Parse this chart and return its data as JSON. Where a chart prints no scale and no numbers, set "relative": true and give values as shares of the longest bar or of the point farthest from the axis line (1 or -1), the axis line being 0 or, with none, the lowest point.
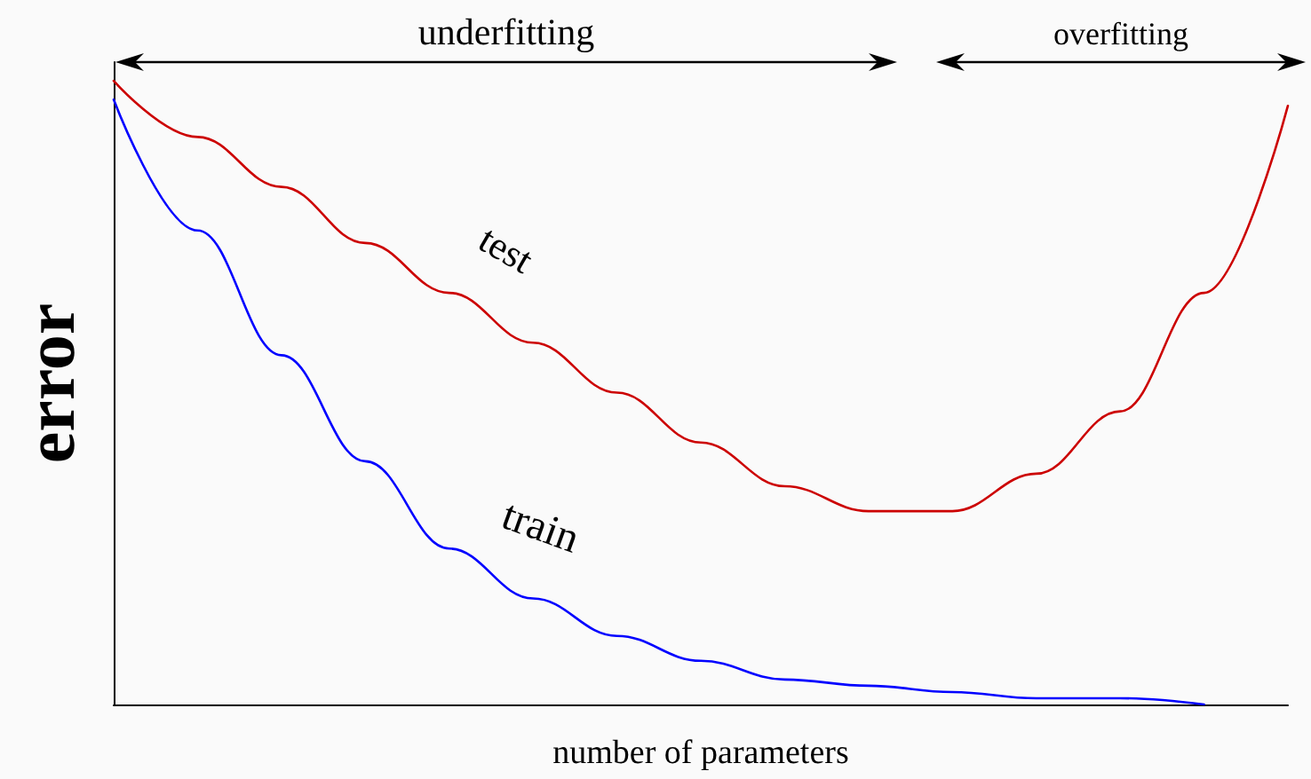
{
  "chart_data": {
    "type": "line",
    "relative": true,
    "xlabel": "number of parameters",
    "ylabel": "error",
    "grid": false,
    "legend": false,
    "marker": "none",
    "line_style": "solid",
    "annotations": [
      "underfitting",
      "overfitting"
    ],
    "categories": [
      null,
      null,
      null,
      null,
      null,
      null,
      null,
      null,
      null,
      null,
      null,
      null,
      null,
      null,
      null
    ],
    "series": [
      {
        "name": "test",
        "color": "#cc0000",
        "values": [
          1,
          0.91,
          0.83,
          0.74,
          0.66,
          0.58,
          0.5,
          0.42,
          0.35,
          0.31,
          0.31,
          0.37,
          0.47,
          0.66,
          0.96
        ]
      },
      {
        "name": "train",
        "color": "#0000ff",
        "values": [
          0.97,
          0.76,
          0.56,
          0.39,
          0.25,
          0.17,
          0.11,
          0.07,
          0.04,
          0.03,
          0.02,
          0.01,
          0.01,
          0,
          null
        ]
      }
    ]
  }
}
